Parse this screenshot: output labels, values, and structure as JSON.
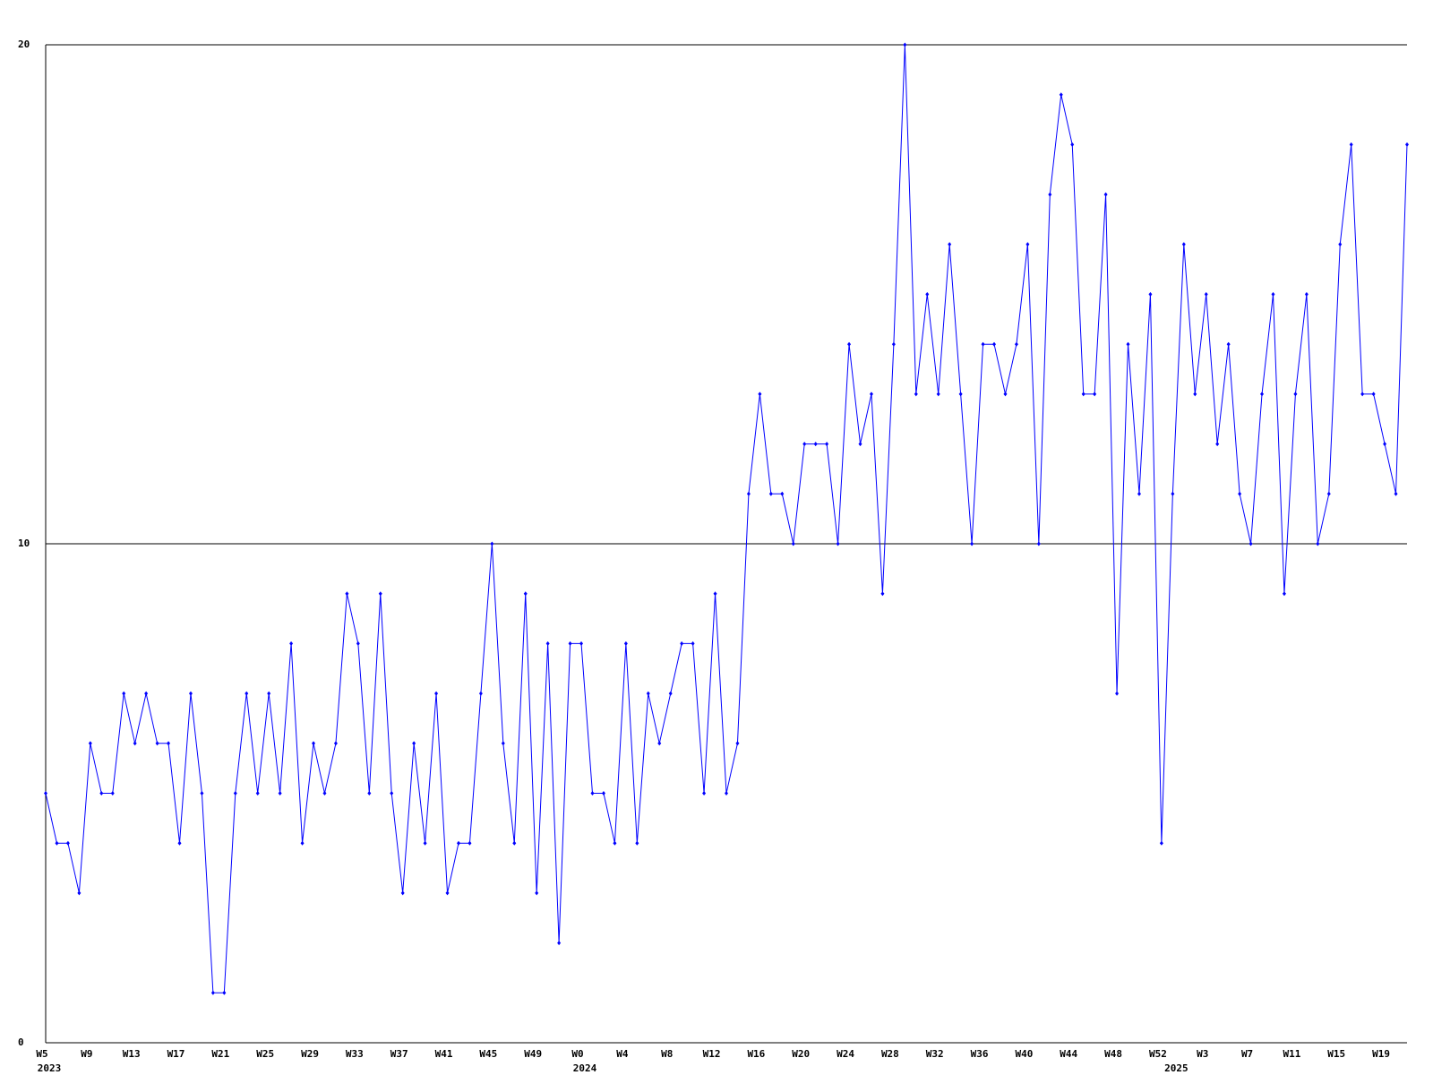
{
  "chart_data": {
    "type": "line",
    "categories": [
      "W5",
      null,
      null,
      null,
      "W9",
      null,
      null,
      null,
      "W13",
      null,
      null,
      null,
      "W17",
      null,
      null,
      null,
      "W21",
      null,
      null,
      null,
      "W25",
      null,
      null,
      null,
      "W29",
      null,
      null,
      null,
      "W33",
      null,
      null,
      null,
      "W37",
      null,
      null,
      null,
      "W41",
      null,
      null,
      null,
      "W45",
      null,
      null,
      null,
      "W49",
      null,
      null,
      null,
      "W0",
      null,
      null,
      null,
      "W4",
      null,
      null,
      null,
      "W8",
      null,
      null,
      null,
      "W12",
      null,
      null,
      null,
      "W16",
      null,
      null,
      null,
      "W20",
      null,
      null,
      null,
      "W24",
      null,
      null,
      null,
      "W28",
      null,
      null,
      null,
      "W32",
      null,
      null,
      null,
      "W36",
      null,
      null,
      null,
      "W40",
      null,
      null,
      null,
      "W44",
      null,
      null,
      null,
      "W48",
      null,
      null,
      null,
      "W52",
      null,
      null,
      null,
      "W3",
      null,
      null,
      null,
      "W7",
      null,
      null,
      null,
      "W11",
      null,
      null,
      null,
      "W15",
      null,
      null,
      null,
      "W19",
      null,
      null
    ],
    "category_groups": [
      "2023",
      null,
      null,
      null,
      null,
      null,
      null,
      null,
      null,
      null,
      null,
      null,
      null,
      null,
      null,
      null,
      null,
      null,
      null,
      null,
      null,
      null,
      null,
      null,
      null,
      null,
      null,
      null,
      null,
      null,
      null,
      null,
      null,
      null,
      null,
      null,
      null,
      null,
      null,
      null,
      null,
      null,
      null,
      null,
      null,
      null,
      null,
      null,
      "2024",
      null,
      null,
      null,
      null,
      null,
      null,
      null,
      null,
      null,
      null,
      null,
      null,
      null,
      null,
      null,
      null,
      null,
      null,
      null,
      null,
      null,
      null,
      null,
      null,
      null,
      null,
      null,
      null,
      null,
      null,
      null,
      null,
      null,
      null,
      null,
      null,
      null,
      null,
      null,
      null,
      null,
      null,
      null,
      null,
      null,
      null,
      null,
      null,
      null,
      null,
      null,
      null,
      "2025",
      null,
      null,
      null,
      null,
      null,
      null,
      null,
      null,
      null,
      null,
      null,
      null,
      null,
      null,
      null,
      null,
      null,
      null,
      null,
      null,
      null
    ],
    "series": [
      {
        "color": "#0000ff",
        "values": [
          5,
          4,
          4,
          3,
          6,
          5,
          5,
          7,
          6,
          7,
          6,
          6,
          4,
          7,
          5,
          1,
          1,
          5,
          7,
          5,
          7,
          5,
          8,
          4,
          6,
          5,
          6,
          9,
          8,
          5,
          9,
          5,
          3,
          6,
          4,
          7,
          3,
          4,
          4,
          7,
          10,
          6,
          4,
          9,
          3,
          8,
          2,
          8,
          8,
          5,
          5,
          4,
          8,
          4,
          7,
          6,
          7,
          8,
          8,
          5,
          9,
          5,
          6,
          11,
          13,
          11,
          11,
          10,
          12,
          12,
          12,
          10,
          14,
          12,
          13,
          9,
          14,
          20,
          13,
          15,
          13,
          16,
          13,
          10,
          14,
          14,
          13,
          14,
          16,
          10,
          17,
          19,
          18,
          13,
          13,
          17,
          7,
          14,
          11,
          15,
          4,
          11,
          16,
          13,
          15,
          12,
          14,
          11,
          10,
          13,
          15,
          9,
          13,
          15,
          10,
          11,
          16,
          18,
          13,
          13,
          12,
          11,
          18
        ]
      }
    ],
    "ylim": [
      0,
      20
    ],
    "yticks": [
      0,
      10,
      20
    ],
    "grid": true
  }
}
